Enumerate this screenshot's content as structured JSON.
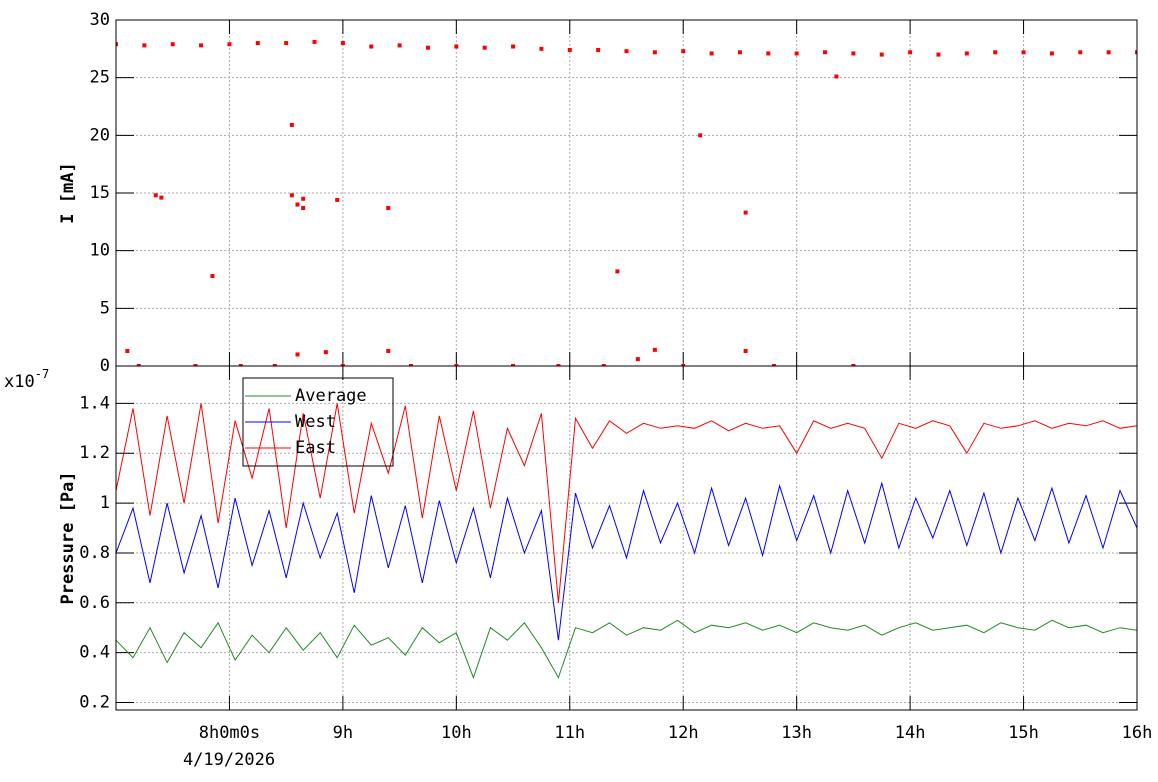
{
  "chart_data": [
    {
      "type": "scatter",
      "ylabel": "I [mA]",
      "xlim": [
        7.0,
        16.0
      ],
      "ylim": [
        0,
        30
      ],
      "yticks": [
        0,
        5,
        10,
        15,
        20,
        25,
        30
      ],
      "grid": true,
      "series": [
        {
          "color": "#ff0000",
          "x": [
            7.0,
            7.25,
            7.5,
            7.75,
            8.0,
            8.25,
            8.5,
            8.75,
            9.0,
            9.25,
            9.5,
            9.75,
            10.0,
            10.25,
            10.5,
            10.75,
            11.0,
            11.25,
            11.5,
            11.75,
            12.0,
            12.25,
            12.5,
            12.75,
            13.0,
            13.25,
            13.5,
            13.75,
            14.0,
            14.25,
            14.5,
            14.75,
            15.0,
            15.25,
            15.5,
            15.75,
            16.0
          ],
          "values": [
            27.9,
            27.8,
            27.9,
            27.8,
            27.9,
            28.0,
            28.0,
            28.1,
            28.0,
            27.7,
            27.8,
            27.6,
            27.7,
            27.6,
            27.7,
            27.5,
            27.4,
            27.4,
            27.3,
            27.2,
            27.3,
            27.1,
            27.2,
            27.1,
            27.1,
            27.2,
            27.1,
            27.0,
            27.2,
            27.0,
            27.1,
            27.2,
            27.2,
            27.1,
            27.2,
            27.2,
            27.2
          ]
        },
        {
          "color": "#ff0000",
          "x": [
            7.1,
            7.35,
            7.4,
            7.85,
            8.55,
            8.55,
            8.6,
            8.65,
            8.65,
            8.95,
            9.4,
            11.42,
            12.15,
            12.55,
            13.35,
            8.6,
            8.85,
            9.4,
            11.75,
            12.55,
            11.6,
            7.2,
            7.7,
            8.1,
            8.4,
            9.0,
            9.6,
            10.0,
            10.5,
            10.9,
            11.3,
            12.0,
            12.8,
            13.5
          ],
          "values": [
            1.3,
            14.8,
            14.6,
            7.8,
            20.9,
            14.8,
            14.0,
            14.5,
            13.7,
            14.4,
            13.7,
            8.2,
            20.0,
            13.3,
            25.1,
            1.0,
            1.2,
            1.3,
            1.4,
            1.3,
            0.6,
            0,
            0,
            0,
            0,
            0,
            0,
            0,
            0,
            0,
            0,
            0,
            0,
            0
          ]
        }
      ]
    },
    {
      "type": "line",
      "ylabel": "Pressure [Pa]",
      "scale_base": "x10",
      "scale_exponent": "-7",
      "date_label": "4/19/2026",
      "xlim": [
        7.0,
        16.0
      ],
      "xticks": [
        {
          "value": 8,
          "label": "8h0m0s"
        },
        {
          "value": 9,
          "label": "9h"
        },
        {
          "value": 10,
          "label": "10h"
        },
        {
          "value": 11,
          "label": "11h"
        },
        {
          "value": 12,
          "label": "12h"
        },
        {
          "value": 13,
          "label": "13h"
        },
        {
          "value": 14,
          "label": "14h"
        },
        {
          "value": 15,
          "label": "15h"
        },
        {
          "value": 16,
          "label": "16h"
        }
      ],
      "ylim": [
        0.17,
        1.55
      ],
      "yticks": [
        0.2,
        0.4,
        0.6,
        0.8,
        1,
        1.2,
        1.4
      ],
      "grid": true,
      "legend": "top-left",
      "x": [
        7.0,
        7.15,
        7.3,
        7.45,
        7.6,
        7.75,
        7.9,
        8.05,
        8.2,
        8.35,
        8.5,
        8.65,
        8.8,
        8.95,
        9.1,
        9.25,
        9.4,
        9.55,
        9.7,
        9.85,
        10.0,
        10.15,
        10.3,
        10.45,
        10.6,
        10.75,
        10.9,
        11.05,
        11.2,
        11.35,
        11.5,
        11.65,
        11.8,
        11.95,
        12.1,
        12.25,
        12.4,
        12.55,
        12.7,
        12.85,
        13.0,
        13.15,
        13.3,
        13.45,
        13.6,
        13.75,
        13.9,
        14.05,
        14.2,
        14.35,
        14.5,
        14.65,
        14.8,
        14.95,
        15.1,
        15.25,
        15.4,
        15.55,
        15.7,
        15.85,
        16.0
      ],
      "series": [
        {
          "name": "Average",
          "color": "#228b22",
          "values": [
            0.45,
            0.38,
            0.5,
            0.36,
            0.48,
            0.42,
            0.52,
            0.37,
            0.47,
            0.4,
            0.5,
            0.41,
            0.48,
            0.38,
            0.51,
            0.43,
            0.46,
            0.39,
            0.5,
            0.44,
            0.48,
            0.3,
            0.5,
            0.45,
            0.52,
            0.42,
            0.3,
            0.5,
            0.48,
            0.52,
            0.47,
            0.5,
            0.49,
            0.53,
            0.48,
            0.51,
            0.5,
            0.52,
            0.49,
            0.51,
            0.48,
            0.52,
            0.5,
            0.49,
            0.51,
            0.47,
            0.5,
            0.52,
            0.49,
            0.5,
            0.51,
            0.48,
            0.52,
            0.5,
            0.49,
            0.53,
            0.5,
            0.51,
            0.48,
            0.5,
            0.49
          ]
        },
        {
          "name": "West",
          "color": "#0000ff",
          "values": [
            0.8,
            0.98,
            0.68,
            1.0,
            0.72,
            0.95,
            0.66,
            1.02,
            0.75,
            0.97,
            0.7,
            1.0,
            0.78,
            0.96,
            0.64,
            1.03,
            0.74,
            0.99,
            0.68,
            1.01,
            0.76,
            0.98,
            0.7,
            1.02,
            0.8,
            0.97,
            0.45,
            1.04,
            0.82,
            0.99,
            0.78,
            1.05,
            0.84,
            1.0,
            0.8,
            1.06,
            0.83,
            1.02,
            0.79,
            1.07,
            0.85,
            1.03,
            0.8,
            1.05,
            0.84,
            1.08,
            0.82,
            1.02,
            0.86,
            1.05,
            0.83,
            1.04,
            0.8,
            1.02,
            0.85,
            1.06,
            0.84,
            1.03,
            0.82,
            1.05,
            0.9
          ]
        },
        {
          "name": "East",
          "color": "#ff0000",
          "values": [
            1.05,
            1.38,
            0.95,
            1.35,
            1.0,
            1.4,
            0.92,
            1.33,
            1.1,
            1.38,
            0.9,
            1.36,
            1.02,
            1.4,
            0.96,
            1.32,
            1.12,
            1.39,
            0.94,
            1.35,
            1.05,
            1.37,
            0.98,
            1.3,
            1.15,
            1.36,
            0.6,
            1.34,
            1.22,
            1.33,
            1.28,
            1.32,
            1.3,
            1.31,
            1.3,
            1.33,
            1.29,
            1.32,
            1.3,
            1.31,
            1.2,
            1.33,
            1.3,
            1.32,
            1.3,
            1.18,
            1.32,
            1.3,
            1.33,
            1.31,
            1.2,
            1.32,
            1.3,
            1.31,
            1.33,
            1.3,
            1.32,
            1.31,
            1.33,
            1.3,
            1.31
          ]
        }
      ]
    }
  ]
}
